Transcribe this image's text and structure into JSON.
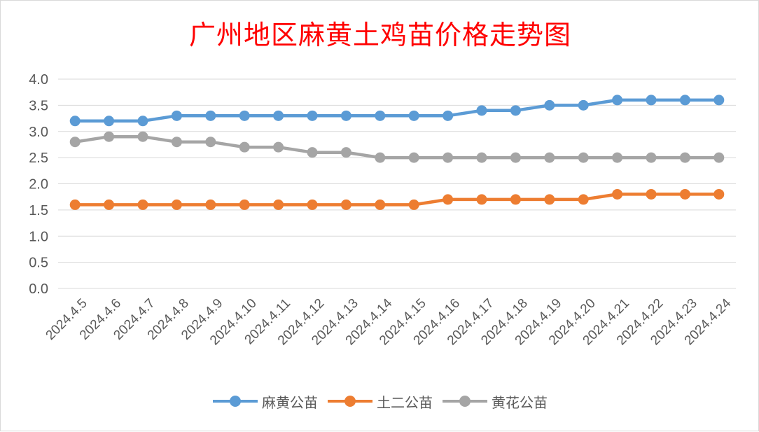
{
  "chart_data": {
    "type": "line",
    "title": "广州地区麻黄土鸡苗价格走势图",
    "xlabel": "",
    "ylabel": "",
    "ylim": [
      0,
      4.0
    ],
    "yticks": [
      "0.0",
      "0.5",
      "1.0",
      "1.5",
      "2.0",
      "2.5",
      "3.0",
      "3.5",
      "4.0"
    ],
    "grid": true,
    "legend_position": "bottom",
    "categories": [
      "2024.4.5",
      "2024.4.6",
      "2024.4.7",
      "2024.4.8",
      "2024.4.9",
      "2024.4.10",
      "2024.4.11",
      "2024.4.12",
      "2024.4.13",
      "2024.4.14",
      "2024.4.15",
      "2024.4.16",
      "2024.4.17",
      "2024.4.18",
      "2024.4.19",
      "2024.4.20",
      "2024.4.21",
      "2024.4.22",
      "2024.4.23",
      "2024.4.24"
    ],
    "series": [
      {
        "name": "麻黄公苗",
        "color": "#5b9bd5",
        "values": [
          3.2,
          3.2,
          3.2,
          3.3,
          3.3,
          3.3,
          3.3,
          3.3,
          3.3,
          3.3,
          3.3,
          3.3,
          3.4,
          3.4,
          3.5,
          3.5,
          3.6,
          3.6,
          3.6,
          3.6
        ]
      },
      {
        "name": "土二公苗",
        "color": "#ed7d31",
        "values": [
          1.6,
          1.6,
          1.6,
          1.6,
          1.6,
          1.6,
          1.6,
          1.6,
          1.6,
          1.6,
          1.6,
          1.7,
          1.7,
          1.7,
          1.7,
          1.7,
          1.8,
          1.8,
          1.8,
          1.8
        ]
      },
      {
        "name": "黄花公苗",
        "color": "#a5a5a5",
        "values": [
          2.8,
          2.9,
          2.9,
          2.8,
          2.8,
          2.7,
          2.7,
          2.6,
          2.6,
          2.5,
          2.5,
          2.5,
          2.5,
          2.5,
          2.5,
          2.5,
          2.5,
          2.5,
          2.5,
          2.5
        ]
      }
    ]
  },
  "colors": {
    "title": "#ff0000",
    "grid": "#d9d9d9",
    "axis_text": "#595959"
  }
}
